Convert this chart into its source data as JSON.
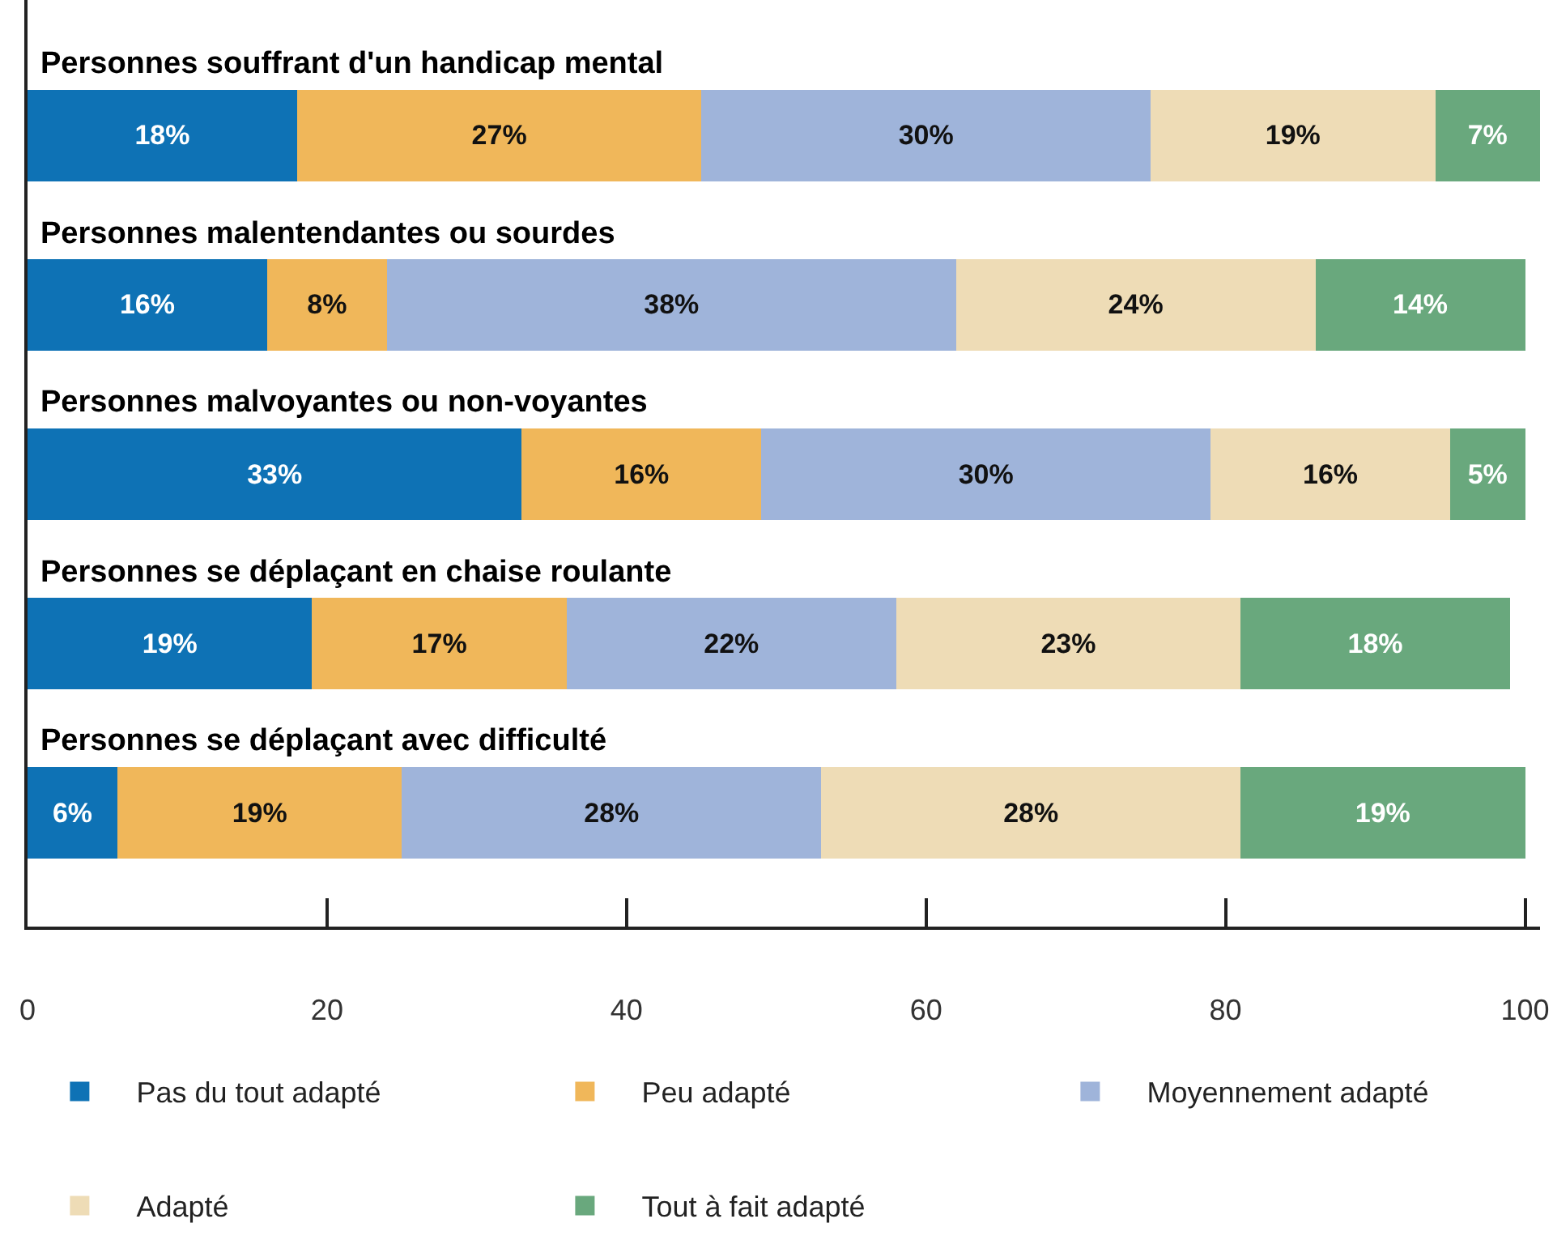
{
  "chart_data": {
    "type": "bar",
    "orientation": "horizontal",
    "stacked": true,
    "categories": [
      "Personnes souffrant d'un handicap mental",
      "Personnes malentendantes ou sourdes",
      "Personnes malvoyantes ou non-voyantes",
      "Personnes se déplaçant en chaise roulante",
      "Personnes se déplaçant avec difficulté"
    ],
    "series": [
      {
        "name": "Pas du tout adapté",
        "color": "#0e72b5",
        "values": [
          18,
          16,
          33,
          19,
          6
        ],
        "value_labels": [
          "18%",
          "16%",
          "33%",
          "19%",
          "6%"
        ]
      },
      {
        "name": "Peu adapté",
        "color": "#f0b75a",
        "values": [
          27,
          8,
          16,
          17,
          19
        ],
        "value_labels": [
          "27%",
          "8%",
          "16%",
          "17%",
          "19%"
        ]
      },
      {
        "name": "Moyennement adapté",
        "color": "#9fb4da",
        "values": [
          30,
          38,
          30,
          22,
          28
        ],
        "value_labels": [
          "30%",
          "38%",
          "30%",
          "22%",
          "28%"
        ]
      },
      {
        "name": "Adapté",
        "color": "#eedcb6",
        "values": [
          19,
          24,
          16,
          23,
          28
        ],
        "value_labels": [
          "19%",
          "24%",
          "16%",
          "23%",
          "28%"
        ]
      },
      {
        "name": "Tout à fait adapté",
        "color": "#69a87d",
        "values": [
          7,
          14,
          5,
          18,
          19
        ],
        "value_labels": [
          "7%",
          "14%",
          "5%",
          "18%",
          "19%"
        ]
      }
    ],
    "xlim": [
      0,
      101
    ],
    "xticks": [
      0,
      20,
      40,
      60,
      80,
      100
    ],
    "grid": false,
    "legend": "bottom"
  }
}
